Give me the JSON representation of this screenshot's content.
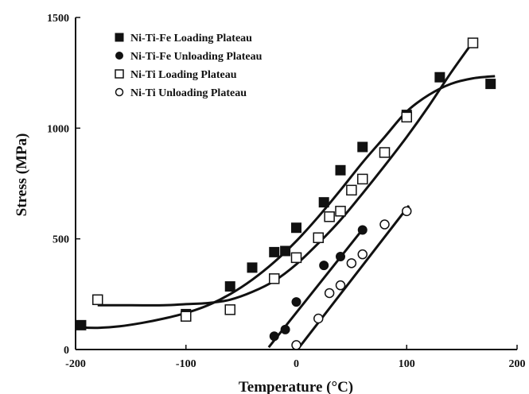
{
  "chart_data": {
    "type": "scatter",
    "title": "",
    "xlabel": "Temperature (°C)",
    "ylabel": "Stress (MPa)",
    "xlim": [
      -200,
      200
    ],
    "ylim": [
      0,
      1500
    ],
    "xticks": [
      -200,
      -100,
      0,
      100,
      200
    ],
    "xtick_labels": [
      "-200",
      "-100",
      "0",
      "100",
      "200"
    ],
    "yticks": [
      0,
      500,
      1000,
      1500
    ],
    "ytick_labels": [
      "0",
      "500",
      "1000",
      "1500"
    ],
    "grid": false,
    "legend_position": "top-left",
    "series": [
      {
        "name": "Ni-Ti-Fe Loading Plateau",
        "marker": "filled-square",
        "points": [
          [
            -195,
            110
          ],
          [
            -100,
            160
          ],
          [
            -60,
            285
          ],
          [
            -40,
            370
          ],
          [
            -20,
            440
          ],
          [
            -10,
            445
          ],
          [
            0,
            550
          ],
          [
            25,
            665
          ],
          [
            40,
            810
          ],
          [
            60,
            915
          ],
          [
            100,
            1060
          ],
          [
            130,
            1230
          ],
          [
            176,
            1200
          ]
        ],
        "fit_curve": [
          [
            -200,
            100
          ],
          [
            -180,
            98
          ],
          [
            -160,
            105
          ],
          [
            -140,
            120
          ],
          [
            -120,
            140
          ],
          [
            -100,
            165
          ],
          [
            -80,
            200
          ],
          [
            -60,
            250
          ],
          [
            -40,
            315
          ],
          [
            -20,
            395
          ],
          [
            0,
            490
          ],
          [
            20,
            600
          ],
          [
            40,
            720
          ],
          [
            60,
            845
          ],
          [
            80,
            960
          ],
          [
            100,
            1075
          ],
          [
            120,
            1150
          ],
          [
            140,
            1200
          ],
          [
            160,
            1225
          ],
          [
            180,
            1235
          ]
        ]
      },
      {
        "name": "Ni-Ti-Fe Unloading Plateau",
        "marker": "filled-circle",
        "points": [
          [
            -20,
            60
          ],
          [
            -10,
            90
          ],
          [
            0,
            215
          ],
          [
            25,
            380
          ],
          [
            40,
            420
          ],
          [
            60,
            540
          ]
        ],
        "fit_curve": [
          [
            -25,
            10
          ],
          [
            62,
            555
          ]
        ]
      },
      {
        "name": "Ni-Ti Loading Plateau",
        "marker": "open-square",
        "points": [
          [
            -180,
            225
          ],
          [
            -100,
            150
          ],
          [
            -60,
            180
          ],
          [
            -20,
            320
          ],
          [
            0,
            415
          ],
          [
            20,
            505
          ],
          [
            30,
            600
          ],
          [
            40,
            625
          ],
          [
            50,
            720
          ],
          [
            60,
            770
          ],
          [
            80,
            890
          ],
          [
            100,
            1050
          ],
          [
            160,
            1385
          ]
        ],
        "fit_curve": [
          [
            -180,
            200
          ],
          [
            -150,
            200
          ],
          [
            -120,
            200
          ],
          [
            -100,
            205
          ],
          [
            -80,
            210
          ],
          [
            -60,
            225
          ],
          [
            -40,
            260
          ],
          [
            -20,
            310
          ],
          [
            0,
            385
          ],
          [
            20,
            480
          ],
          [
            40,
            585
          ],
          [
            60,
            705
          ],
          [
            80,
            830
          ],
          [
            100,
            960
          ],
          [
            120,
            1100
          ],
          [
            140,
            1250
          ],
          [
            160,
            1390
          ]
        ]
      },
      {
        "name": "Ni-Ti Unloading Plateau",
        "marker": "open-circle",
        "points": [
          [
            0,
            20
          ],
          [
            20,
            140
          ],
          [
            30,
            255
          ],
          [
            40,
            290
          ],
          [
            50,
            390
          ],
          [
            60,
            430
          ],
          [
            80,
            565
          ],
          [
            100,
            625
          ]
        ],
        "fit_curve": [
          [
            -2,
            -20
          ],
          [
            102,
            650
          ]
        ]
      }
    ]
  }
}
